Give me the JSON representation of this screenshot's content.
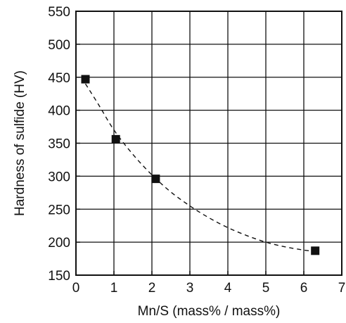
{
  "chart_data": {
    "type": "scatter",
    "title": "",
    "xlabel": "Mn/S (mass% / mass%)",
    "ylabel": "Hardness of sulfide (HV)",
    "xlim": [
      0,
      7
    ],
    "ylim": [
      150,
      550
    ],
    "xticks": [
      0,
      1,
      2,
      3,
      4,
      5,
      6,
      7
    ],
    "yticks": [
      150,
      200,
      250,
      300,
      350,
      400,
      450,
      500,
      550
    ],
    "grid": true,
    "legend": "none",
    "series": [
      {
        "marker": "square",
        "color": "#111111",
        "x": [
          0.25,
          1.05,
          2.1,
          6.3
        ],
        "y": [
          447,
          356,
          296,
          187
        ]
      }
    ],
    "trendline": {
      "style": "dashed",
      "color": "#111111",
      "x": [
        0.25,
        0.6,
        1.0,
        1.5,
        2.0,
        2.5,
        3.0,
        3.5,
        4.0,
        4.5,
        5.0,
        5.5,
        6.0,
        6.3
      ],
      "y": [
        440,
        408,
        370,
        333,
        302,
        276,
        255,
        237,
        222,
        210,
        200,
        193,
        188,
        186
      ]
    }
  }
}
